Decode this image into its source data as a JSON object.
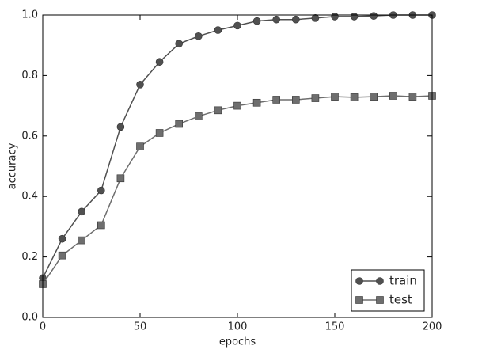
{
  "chart_data": {
    "type": "line",
    "xlabel": "epochs",
    "ylabel": "accuracy",
    "x": [
      0,
      10,
      20,
      30,
      40,
      50,
      60,
      70,
      80,
      90,
      100,
      110,
      120,
      130,
      140,
      150,
      160,
      170,
      180,
      190,
      200
    ],
    "series": [
      {
        "name": "train",
        "color": "#505050",
        "marker": "circle",
        "values": [
          0.13,
          0.26,
          0.35,
          0.42,
          0.63,
          0.77,
          0.845,
          0.905,
          0.93,
          0.95,
          0.965,
          0.98,
          0.985,
          0.985,
          0.99,
          0.995,
          0.995,
          0.997,
          1.0,
          1.0,
          1.0
        ]
      },
      {
        "name": "test",
        "color": "#6e6e6e",
        "marker": "square",
        "values": [
          0.11,
          0.205,
          0.255,
          0.305,
          0.46,
          0.565,
          0.61,
          0.64,
          0.665,
          0.685,
          0.7,
          0.71,
          0.72,
          0.72,
          0.725,
          0.73,
          0.728,
          0.73,
          0.733,
          0.73,
          0.733
        ]
      }
    ],
    "xlim": [
      0,
      200
    ],
    "xticks": [
      0,
      50,
      100,
      150,
      200
    ],
    "ylim": [
      0,
      1
    ],
    "yticks": [
      {
        "value": 0,
        "label": "0.0"
      },
      0.2,
      0.4,
      0.6,
      0.8,
      {
        "value": 1,
        "label": "1.0"
      }
    ],
    "legend": "lower right"
  }
}
